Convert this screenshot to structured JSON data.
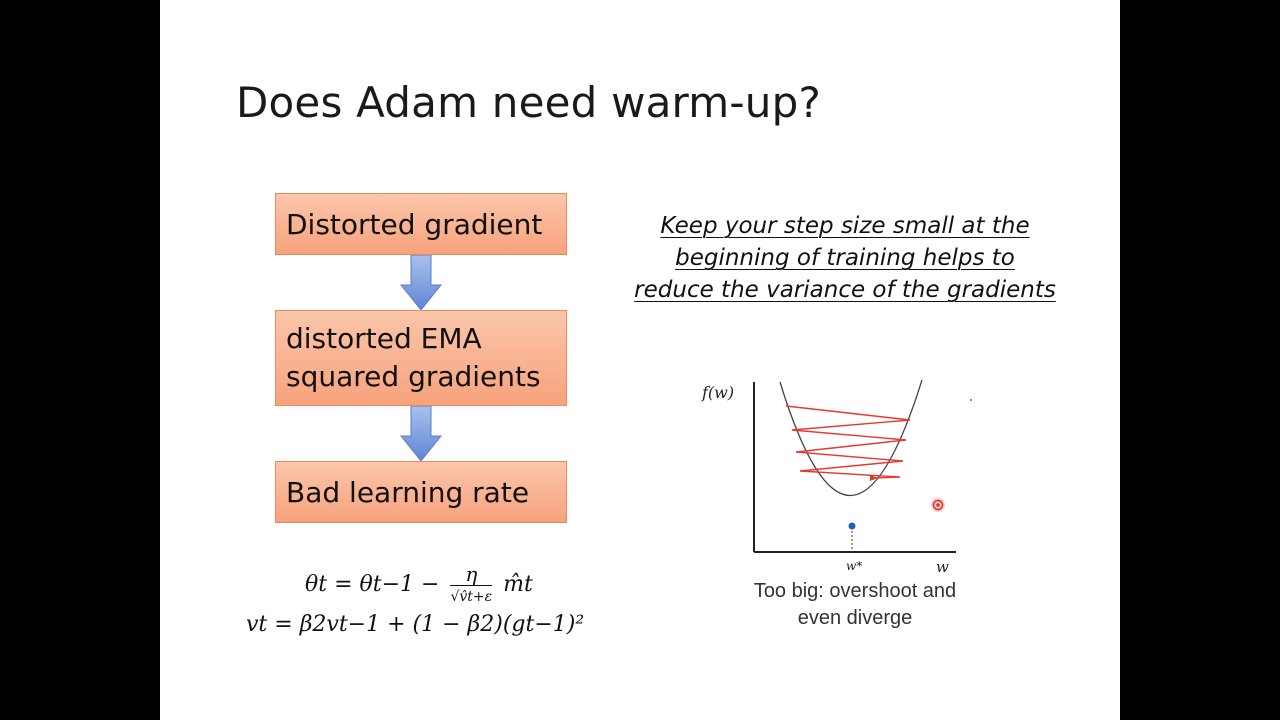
{
  "slide": {
    "title": "Does Adam need warm-up?",
    "flow": {
      "box1": "Distorted gradient",
      "box2_line1": "distorted EMA",
      "box2_line2": "squared gradients",
      "box3": "Bad learning rate"
    },
    "note": {
      "line1": "Keep your step size small at the",
      "line2": "beginning of training helps to",
      "line3": "reduce the variance of the gradients"
    },
    "formulas": {
      "theta_lhs": "θt = θt−1 −",
      "theta_num": "η",
      "theta_den": "√v̂t+ε",
      "theta_rhs": "m̂t",
      "v_eq": "vt = β2vt−1 + (1 − β2)(gt−1)²"
    },
    "figure": {
      "y_label": "f(w)",
      "x_label": "w",
      "min_label": "w*",
      "caption_line1": "Too big: overshoot and",
      "caption_line2": "even diverge"
    },
    "colors": {
      "box_fill": "#f7a27d",
      "box_border": "#e98a5c",
      "arrow": "#7a9cdc",
      "zigzag": "#e53a2e",
      "min_point": "#1f5fbf"
    }
  }
}
